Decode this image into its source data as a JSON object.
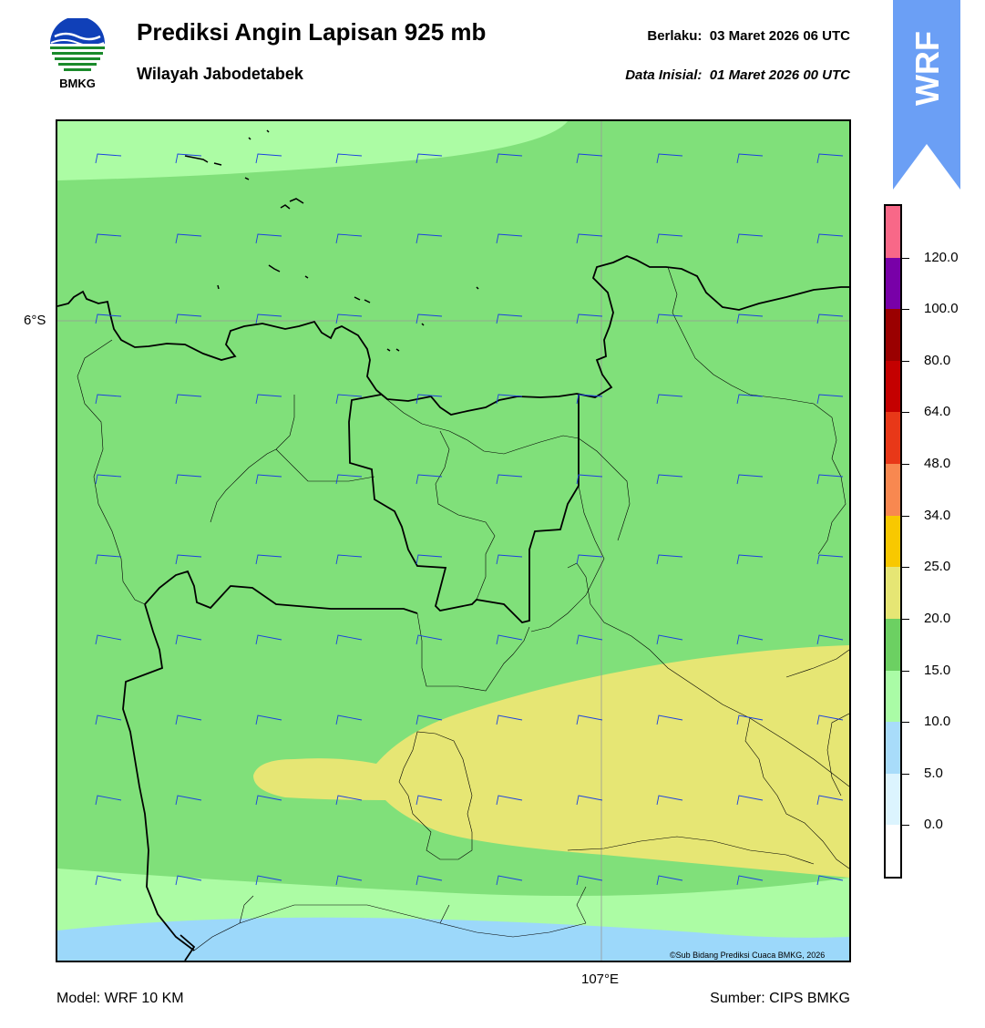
{
  "header": {
    "logo_text": "BMKG",
    "title": "Prediksi Angin Lapisan 925 mb",
    "subtitle": "Wilayah Jabodetabek",
    "valid_label": "Berlaku:",
    "valid_value": "03 Maret 2026 06 UTC",
    "init_label": "Data Inisial:",
    "init_value": "01 Maret 2026 00 UTC"
  },
  "banner": {
    "text": "WRF",
    "color": "#6b9ff5"
  },
  "map": {
    "lat_label": "6°S",
    "lon_label": "107°E",
    "copyright": "©Sub Bidang Prediksi Cuaca BMKG, 2026",
    "wind_barb_color": "#1a3fe0",
    "fill_colors": {
      "light_blue": "#9cd8fa",
      "light_green": "#acfca4",
      "green": "#80e07a",
      "yellow": "#e6e674"
    }
  },
  "footer": {
    "model": "Model: WRF 10 KM",
    "source": "Sumber: CIPS BMKG"
  },
  "colorbar": {
    "tick_labels": [
      "0.0",
      "5.0",
      "10.0",
      "15.0",
      "20.0",
      "25.0",
      "34.0",
      "48.0",
      "64.0",
      "80.0",
      "100.0",
      "120.0"
    ],
    "colors_bottom_to_top": [
      "#ffffff",
      "#dcf4fe",
      "#a8dcfa",
      "#aafca6",
      "#6cd062",
      "#e6e674",
      "#f8c800",
      "#f88850",
      "#e83818",
      "#c40000",
      "#9a0000",
      "#7800a8",
      "#f86888"
    ]
  }
}
